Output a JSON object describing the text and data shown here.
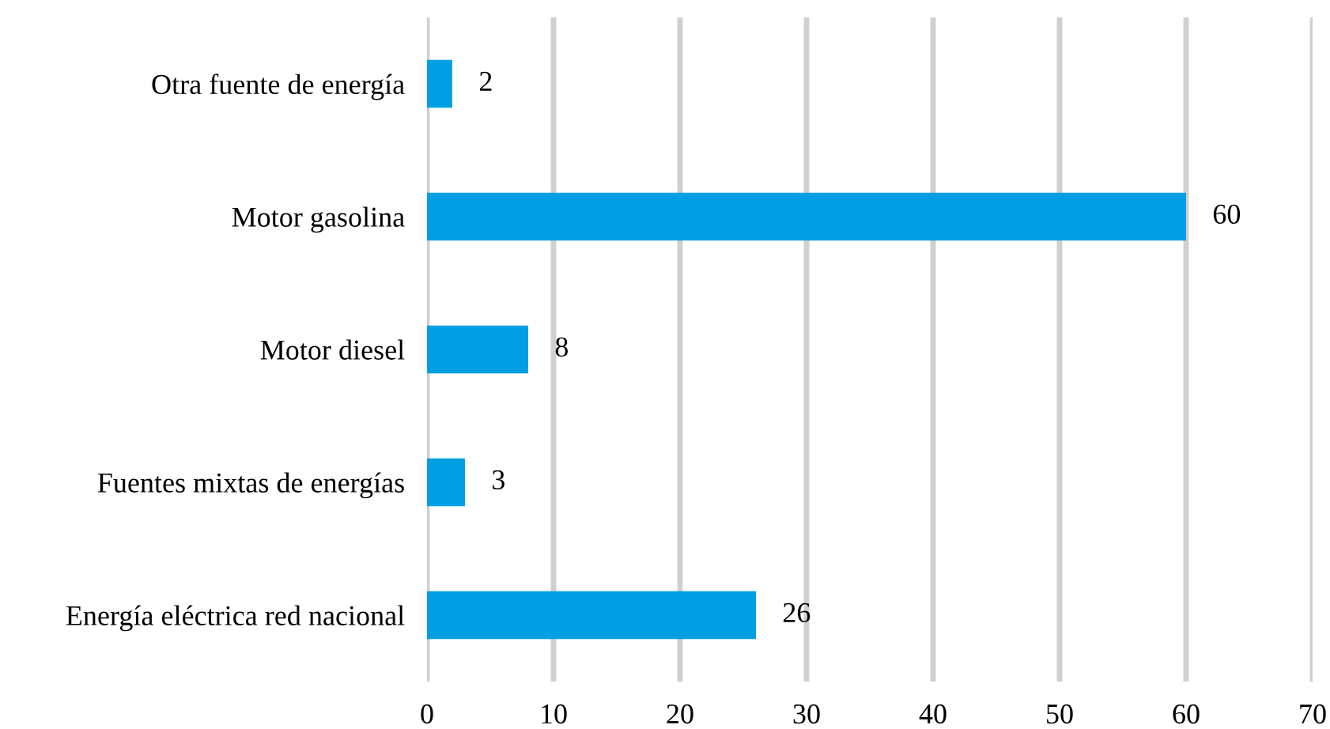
{
  "chart_data": {
    "type": "bar",
    "orientation": "horizontal",
    "categories": [
      "Otra fuente de energía",
      "Motor gasolina",
      "Motor diesel",
      "Fuentes mixtas de energías",
      "Energía eléctrica red nacional"
    ],
    "values": [
      2,
      60,
      8,
      3,
      26
    ],
    "color": "#009fe3",
    "xlim": [
      0,
      70
    ],
    "xticks": [
      0,
      10,
      20,
      30,
      40,
      50,
      60,
      70
    ],
    "grid": "x",
    "data_labels": true
  }
}
